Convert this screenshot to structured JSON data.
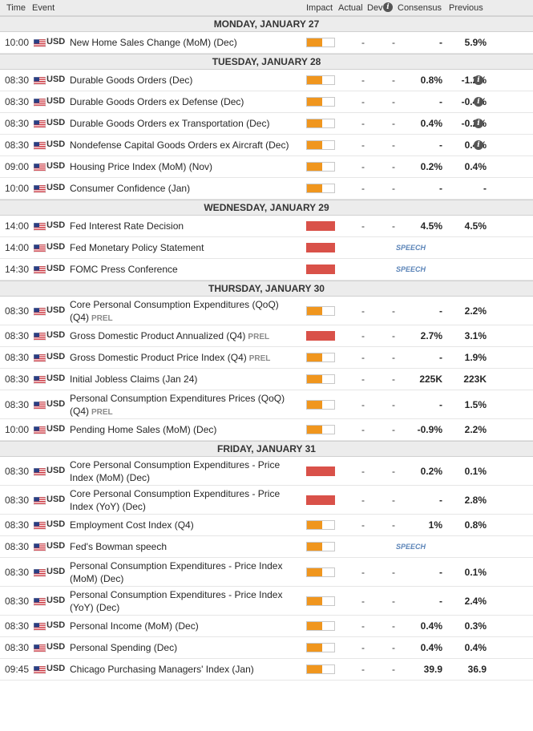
{
  "header": {
    "time": "Time",
    "event": "Event",
    "impact": "Impact",
    "actual": "Actual",
    "dev": "Dev",
    "consensus": "Consensus",
    "previous": "Previous"
  },
  "info_glyph": "i",
  "days": [
    {
      "label": "MONDAY, JANUARY 27",
      "rows": [
        {
          "time": "10:00",
          "currency": "USD",
          "event": "New Home Sales Change (MoM) (Dec)",
          "impact": "medium",
          "actual": "-",
          "dev": "-",
          "consensus": "-",
          "previous": "5.9%"
        }
      ]
    },
    {
      "label": "TUESDAY, JANUARY 28",
      "rows": [
        {
          "time": "08:30",
          "currency": "USD",
          "event": "Durable Goods Orders (Dec)",
          "impact": "medium",
          "actual": "-",
          "dev": "-",
          "consensus": "0.8%",
          "previous": "-1.2%",
          "info": true
        },
        {
          "time": "08:30",
          "currency": "USD",
          "event": "Durable Goods Orders ex Defense (Dec)",
          "impact": "medium",
          "actual": "-",
          "dev": "-",
          "consensus": "-",
          "previous": "-0.4%",
          "info": true
        },
        {
          "time": "08:30",
          "currency": "USD",
          "event": "Durable Goods Orders ex Transportation (Dec)",
          "impact": "medium",
          "actual": "-",
          "dev": "-",
          "consensus": "0.4%",
          "previous": "-0.2%",
          "info": true
        },
        {
          "time": "08:30",
          "currency": "USD",
          "event": "Nondefense Capital Goods Orders ex Aircraft (Dec)",
          "impact": "medium",
          "actual": "-",
          "dev": "-",
          "consensus": "-",
          "previous": "0.4%",
          "info": true
        },
        {
          "time": "09:00",
          "currency": "USD",
          "event": "Housing Price Index (MoM) (Nov)",
          "impact": "medium",
          "actual": "-",
          "dev": "-",
          "consensus": "0.2%",
          "previous": "0.4%"
        },
        {
          "time": "10:00",
          "currency": "USD",
          "event": "Consumer Confidence (Jan)",
          "impact": "medium",
          "actual": "-",
          "dev": "-",
          "consensus": "-",
          "previous": "-"
        }
      ]
    },
    {
      "label": "WEDNESDAY, JANUARY 29",
      "rows": [
        {
          "time": "14:00",
          "currency": "USD",
          "event": "Fed Interest Rate Decision",
          "impact": "high",
          "actual": "-",
          "dev": "-",
          "consensus": "4.5%",
          "previous": "4.5%"
        },
        {
          "time": "14:00",
          "currency": "USD",
          "event": "Fed Monetary Policy Statement",
          "impact": "high",
          "speech": "SPEECH"
        },
        {
          "time": "14:30",
          "currency": "USD",
          "event": "FOMC Press Conference",
          "impact": "high",
          "speech": "SPEECH"
        }
      ]
    },
    {
      "label": "THURSDAY, JANUARY 30",
      "rows": [
        {
          "time": "08:30",
          "currency": "USD",
          "event": "Core Personal Consumption Expenditures (QoQ) (Q4)",
          "prel": "PREL",
          "tall": true,
          "impact": "medium",
          "actual": "-",
          "dev": "-",
          "consensus": "-",
          "previous": "2.2%"
        },
        {
          "time": "08:30",
          "currency": "USD",
          "event": "Gross Domestic Product Annualized (Q4)",
          "prel": "PREL",
          "impact": "high",
          "actual": "-",
          "dev": "-",
          "consensus": "2.7%",
          "previous": "3.1%"
        },
        {
          "time": "08:30",
          "currency": "USD",
          "event": "Gross Domestic Product Price Index (Q4)",
          "prel": "PREL",
          "impact": "medium",
          "actual": "-",
          "dev": "-",
          "consensus": "-",
          "previous": "1.9%"
        },
        {
          "time": "08:30",
          "currency": "USD",
          "event": "Initial Jobless Claims (Jan 24)",
          "impact": "medium",
          "actual": "-",
          "dev": "-",
          "consensus": "225K",
          "previous": "223K"
        },
        {
          "time": "08:30",
          "currency": "USD",
          "event": "Personal Consumption Expenditures Prices (QoQ) (Q4)",
          "prel": "PREL",
          "tall": true,
          "impact": "medium",
          "actual": "-",
          "dev": "-",
          "consensus": "-",
          "previous": "1.5%"
        },
        {
          "time": "10:00",
          "currency": "USD",
          "event": "Pending Home Sales (MoM) (Dec)",
          "impact": "medium",
          "actual": "-",
          "dev": "-",
          "consensus": "-0.9%",
          "previous": "2.2%"
        }
      ]
    },
    {
      "label": "FRIDAY, JANUARY 31",
      "rows": [
        {
          "time": "08:30",
          "currency": "USD",
          "event": "Core Personal Consumption Expenditures - Price Index (MoM) (Dec)",
          "tall": true,
          "impact": "high",
          "actual": "-",
          "dev": "-",
          "consensus": "0.2%",
          "previous": "0.1%"
        },
        {
          "time": "08:30",
          "currency": "USD",
          "event": "Core Personal Consumption Expenditures - Price Index (YoY) (Dec)",
          "tall": true,
          "impact": "high",
          "actual": "-",
          "dev": "-",
          "consensus": "-",
          "previous": "2.8%"
        },
        {
          "time": "08:30",
          "currency": "USD",
          "event": "Employment Cost Index (Q4)",
          "impact": "medium",
          "actual": "-",
          "dev": "-",
          "consensus": "1%",
          "previous": "0.8%"
        },
        {
          "time": "08:30",
          "currency": "USD",
          "event": "Fed's Bowman speech",
          "impact": "medium",
          "speech": "SPEECH"
        },
        {
          "time": "08:30",
          "currency": "USD",
          "event": "Personal Consumption Expenditures - Price Index (MoM) (Dec)",
          "tall": true,
          "impact": "medium",
          "actual": "-",
          "dev": "-",
          "consensus": "-",
          "previous": "0.1%"
        },
        {
          "time": "08:30",
          "currency": "USD",
          "event": "Personal Consumption Expenditures - Price Index (YoY) (Dec)",
          "tall": true,
          "impact": "medium",
          "actual": "-",
          "dev": "-",
          "consensus": "-",
          "previous": "2.4%"
        },
        {
          "time": "08:30",
          "currency": "USD",
          "event": "Personal Income (MoM) (Dec)",
          "impact": "medium",
          "actual": "-",
          "dev": "-",
          "consensus": "0.4%",
          "previous": "0.3%"
        },
        {
          "time": "08:30",
          "currency": "USD",
          "event": "Personal Spending (Dec)",
          "impact": "medium",
          "actual": "-",
          "dev": "-",
          "consensus": "0.4%",
          "previous": "0.4%"
        },
        {
          "time": "09:45",
          "currency": "USD",
          "event": "Chicago Purchasing Managers' Index (Jan)",
          "impact": "medium",
          "actual": "-",
          "dev": "-",
          "consensus": "39.9",
          "previous": "36.9"
        }
      ]
    }
  ],
  "colors": {
    "impact_medium": "#f0961e",
    "impact_high": "#d95149",
    "speech": "#5b84b8",
    "header_bg": "#ececec"
  }
}
